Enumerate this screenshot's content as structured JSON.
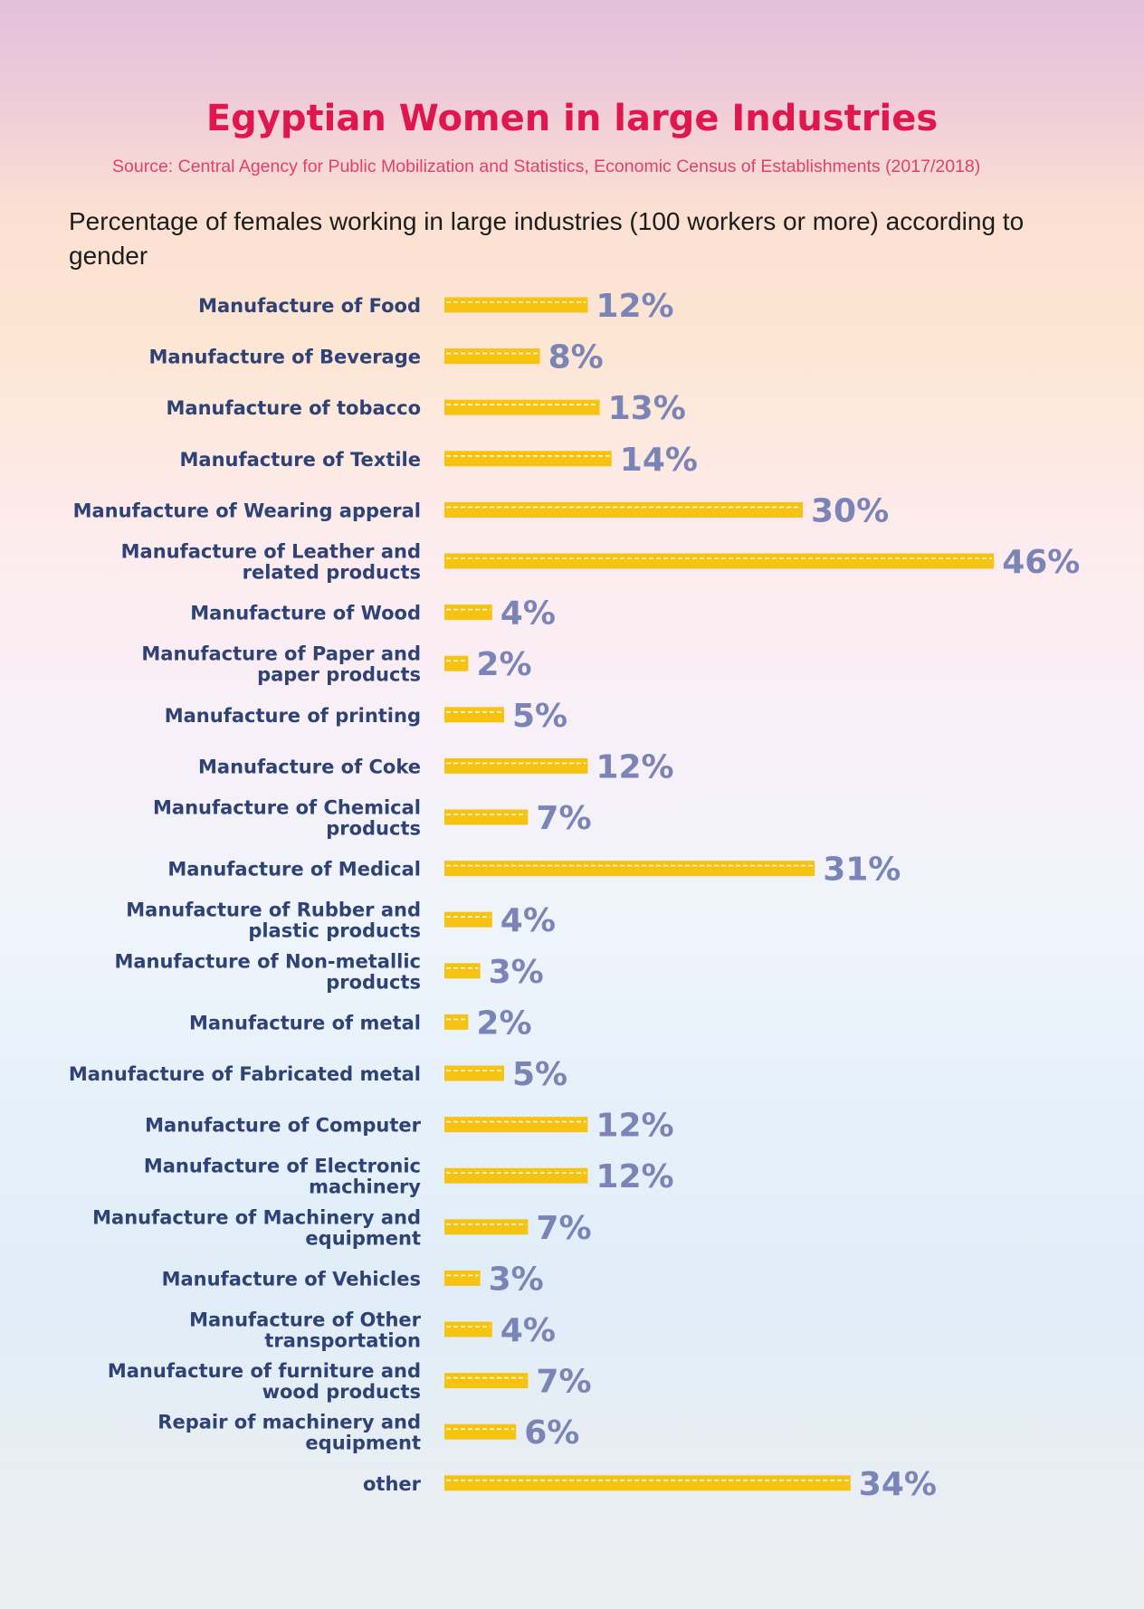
{
  "title": "Egyptian Women in large Industries",
  "source": "Source: Central Agency for Public Mobilization and Statistics, Economic Census of Establishments (2017/2018)",
  "subtitle": "Percentage of females working in large industries (100 workers or more) according to gender",
  "colors": {
    "title": "#e0164f",
    "source": "#e14168",
    "bar": "#f6c313",
    "bar_dash": "#fff7dc",
    "category_label": "#2e4275",
    "value_label": "#7a84b6"
  },
  "chart_data": {
    "type": "bar",
    "orientation": "horizontal",
    "title": "Egyptian Women in large Industries",
    "subtitle": "Percentage of females working in large industries (100 workers or more) according to gender",
    "categories": [
      [
        "Manufacture of Food"
      ],
      [
        "Manufacture of Beverage"
      ],
      [
        "Manufacture of tobacco"
      ],
      [
        "Manufacture of Textile"
      ],
      [
        "Manufacture of Wearing apperal"
      ],
      [
        "Manufacture of Leather and",
        "related products"
      ],
      [
        "Manufacture of Wood"
      ],
      [
        "Manufacture of Paper and",
        "paper products"
      ],
      [
        "Manufacture of printing"
      ],
      [
        "Manufacture of Coke"
      ],
      [
        "Manufacture of Chemical",
        "products"
      ],
      [
        "Manufacture of Medical"
      ],
      [
        "Manufacture of Rubber and",
        "plastic products"
      ],
      [
        "Manufacture of Non-metallic",
        "products"
      ],
      [
        "Manufacture of metal"
      ],
      [
        "Manufacture of Fabricated metal"
      ],
      [
        "Manufacture of Computer"
      ],
      [
        "Manufacture of Electronic",
        "machinery"
      ],
      [
        "Manufacture of Machinery and",
        "equipment"
      ],
      [
        "Manufacture of Vehicles"
      ],
      [
        "Manufacture of Other",
        "transportation"
      ],
      [
        "Manufacture of furniture and",
        "wood products"
      ],
      [
        "Repair of machinery and",
        "equipment"
      ],
      [
        "other"
      ]
    ],
    "values": [
      12,
      8,
      13,
      14,
      30,
      46,
      4,
      2,
      5,
      12,
      7,
      31,
      4,
      3,
      2,
      5,
      12,
      12,
      7,
      3,
      4,
      7,
      6,
      34
    ],
    "value_labels": [
      "12%",
      "8%",
      "13%",
      "14%",
      "30%",
      "46%",
      "4%",
      "2%",
      "5%",
      "12%",
      "7%",
      "31%",
      "4%",
      "3%",
      "2%",
      "5%",
      "12%",
      "12%",
      "7%",
      "3%",
      "4%",
      "7%",
      "6%",
      "34%"
    ],
    "unit": "%",
    "xlim": [
      0,
      46
    ],
    "grid": false,
    "legend": "none"
  }
}
